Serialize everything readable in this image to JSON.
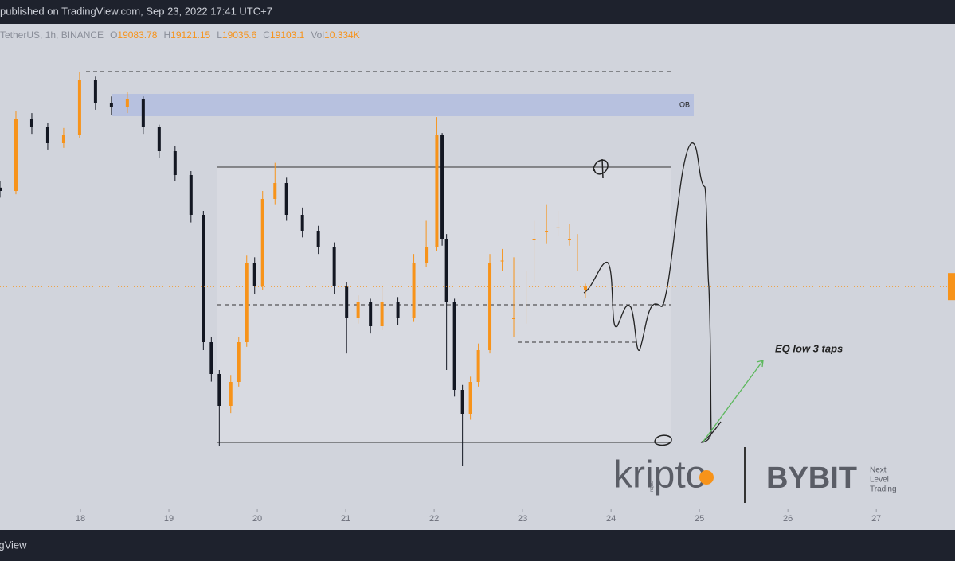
{
  "header": "published on TradingView.com, Sep 23, 2022 17:41 UTC+7",
  "footer": "TradingView",
  "chart_data": {
    "type": "candlestick",
    "symbol": "TetherUS, 1h, BINANCE",
    "ohlc_labels": {
      "open": "O",
      "high": "H",
      "low": "L",
      "close": "C",
      "volume": "Vol"
    },
    "volume": "10.334K",
    "annotations": {
      "ob": "OB",
      "note": "EQ low 3 taps"
    },
    "logos": {
      "kripto": "kripto",
      "kripto_sub": "subu",
      "bybit": "BYBIT",
      "bybit_tag": [
        "Next",
        "Level",
        "Trading"
      ]
    },
    "up_color": "#f7931a",
    "down_color": "#131722",
    "xlim": [
      17.09,
      27.89
    ],
    "xticks": [
      18,
      19,
      20,
      21,
      22,
      23,
      24,
      25,
      26,
      27
    ],
    "ylim": [
      17760,
      20688
    ],
    "x": [
      17.09,
      17.27,
      17.45,
      17.63,
      17.81,
      17.99,
      18.17,
      18.35,
      18.53,
      18.71,
      18.89,
      19.07,
      19.25,
      19.39,
      19.48,
      19.57,
      19.7,
      19.79,
      19.88,
      19.97,
      20.06,
      20.2,
      20.33,
      20.51,
      20.69,
      20.87,
      21.01,
      21.14,
      21.28,
      21.41,
      21.59,
      21.77,
      21.91,
      22.03,
      22.09,
      22.14,
      22.23,
      22.32,
      22.41,
      22.5,
      22.63,
      22.77,
      22.9,
      23.04,
      23.13,
      23.27,
      23.4,
      23.53,
      23.62,
      23.71
    ],
    "open": [
      19700,
      19680,
      20112,
      20064,
      19968,
      20016,
      20352,
      20208,
      20184,
      20232,
      20064,
      19920,
      19776,
      19536,
      18768,
      18576,
      18384,
      18528,
      18768,
      19248,
      19104,
      19632,
      19728,
      19536,
      19440,
      19344,
      19104,
      18912,
      19008,
      18864,
      19008,
      18912,
      19248,
      19344,
      20016,
      19392,
      19008,
      18480,
      18336,
      18528,
      18720,
      19260,
      18912,
      19152,
      19392,
      19440,
      19460,
      19392,
      19248,
      19083.78
    ],
    "high": [
      19740,
      20160,
      20150,
      20090,
      20060,
      20400,
      20370,
      20250,
      20280,
      20250,
      20080,
      19950,
      19800,
      19560,
      18800,
      18600,
      18570,
      18800,
      19290,
      19280,
      19680,
      19850,
      19760,
      19580,
      19470,
      19370,
      19130,
      19050,
      19030,
      19100,
      19040,
      19300,
      19500,
      20126,
      20030,
      19420,
      19030,
      18510,
      18560,
      18760,
      19300,
      19330,
      19280,
      19200,
      19500,
      19600,
      19560,
      19480,
      19420,
      19121.15
    ],
    "low": [
      19640,
      19660,
      20020,
      19930,
      19940,
      20000,
      20170,
      20140,
      20150,
      20020,
      19880,
      19740,
      19490,
      18720,
      18530,
      18144,
      18340,
      18500,
      18740,
      19060,
      19080,
      19600,
      19500,
      19400,
      19300,
      19060,
      18700,
      18880,
      18820,
      18840,
      18870,
      18890,
      19220,
      19320,
      19350,
      18600,
      18440,
      18024,
      18300,
      18500,
      18700,
      19200,
      18800,
      18880,
      19130,
      19360,
      19410,
      19350,
      19200,
      19035.6
    ],
    "close": [
      19680,
      20112,
      20064,
      19968,
      20016,
      20352,
      20208,
      20184,
      20232,
      20064,
      19920,
      19776,
      19536,
      18768,
      18576,
      18384,
      18528,
      18768,
      19248,
      19104,
      19632,
      19728,
      19536,
      19440,
      19344,
      19104,
      18912,
      19008,
      18864,
      19008,
      18912,
      19248,
      19344,
      20016,
      19392,
      19008,
      18480,
      18336,
      18528,
      18720,
      19248,
      19260,
      18912,
      19152,
      19392,
      19440,
      19460,
      19392,
      19248,
      19103.1
    ]
  }
}
